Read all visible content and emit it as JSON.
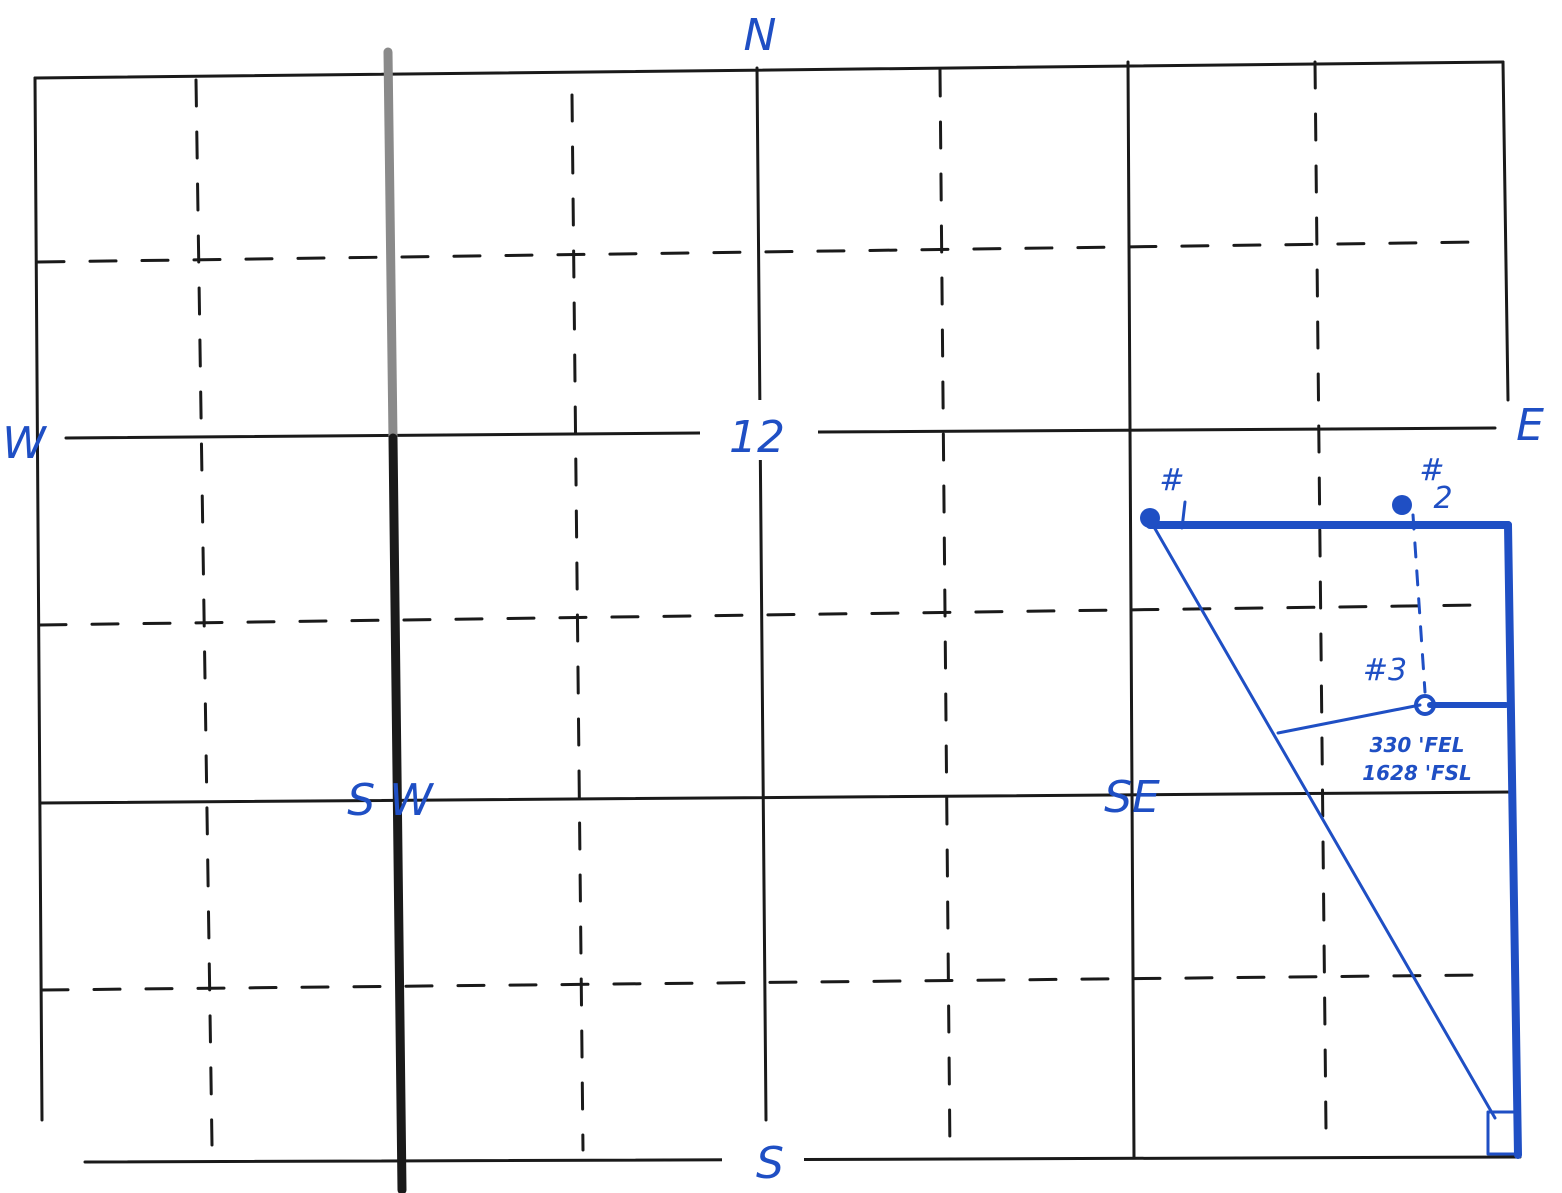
{
  "plat": {
    "compass": {
      "north": "N",
      "south": "S",
      "east": "E",
      "west": "W"
    },
    "section_number": "12",
    "quarter_labels": {
      "southwest": "S W",
      "southeast": "SE"
    },
    "wells": [
      {
        "label": "#1",
        "hash": "#",
        "number": "1"
      },
      {
        "label": "#2",
        "hash": "#",
        "number": "2"
      },
      {
        "label": "#3"
      }
    ],
    "footage": {
      "fel": "330 'FEL",
      "fsl": "1628 'FSL"
    },
    "colors": {
      "ink": "#1a1a1a",
      "pencil": "#8a8a8a",
      "blue_pen": "#1f4fc4"
    }
  }
}
